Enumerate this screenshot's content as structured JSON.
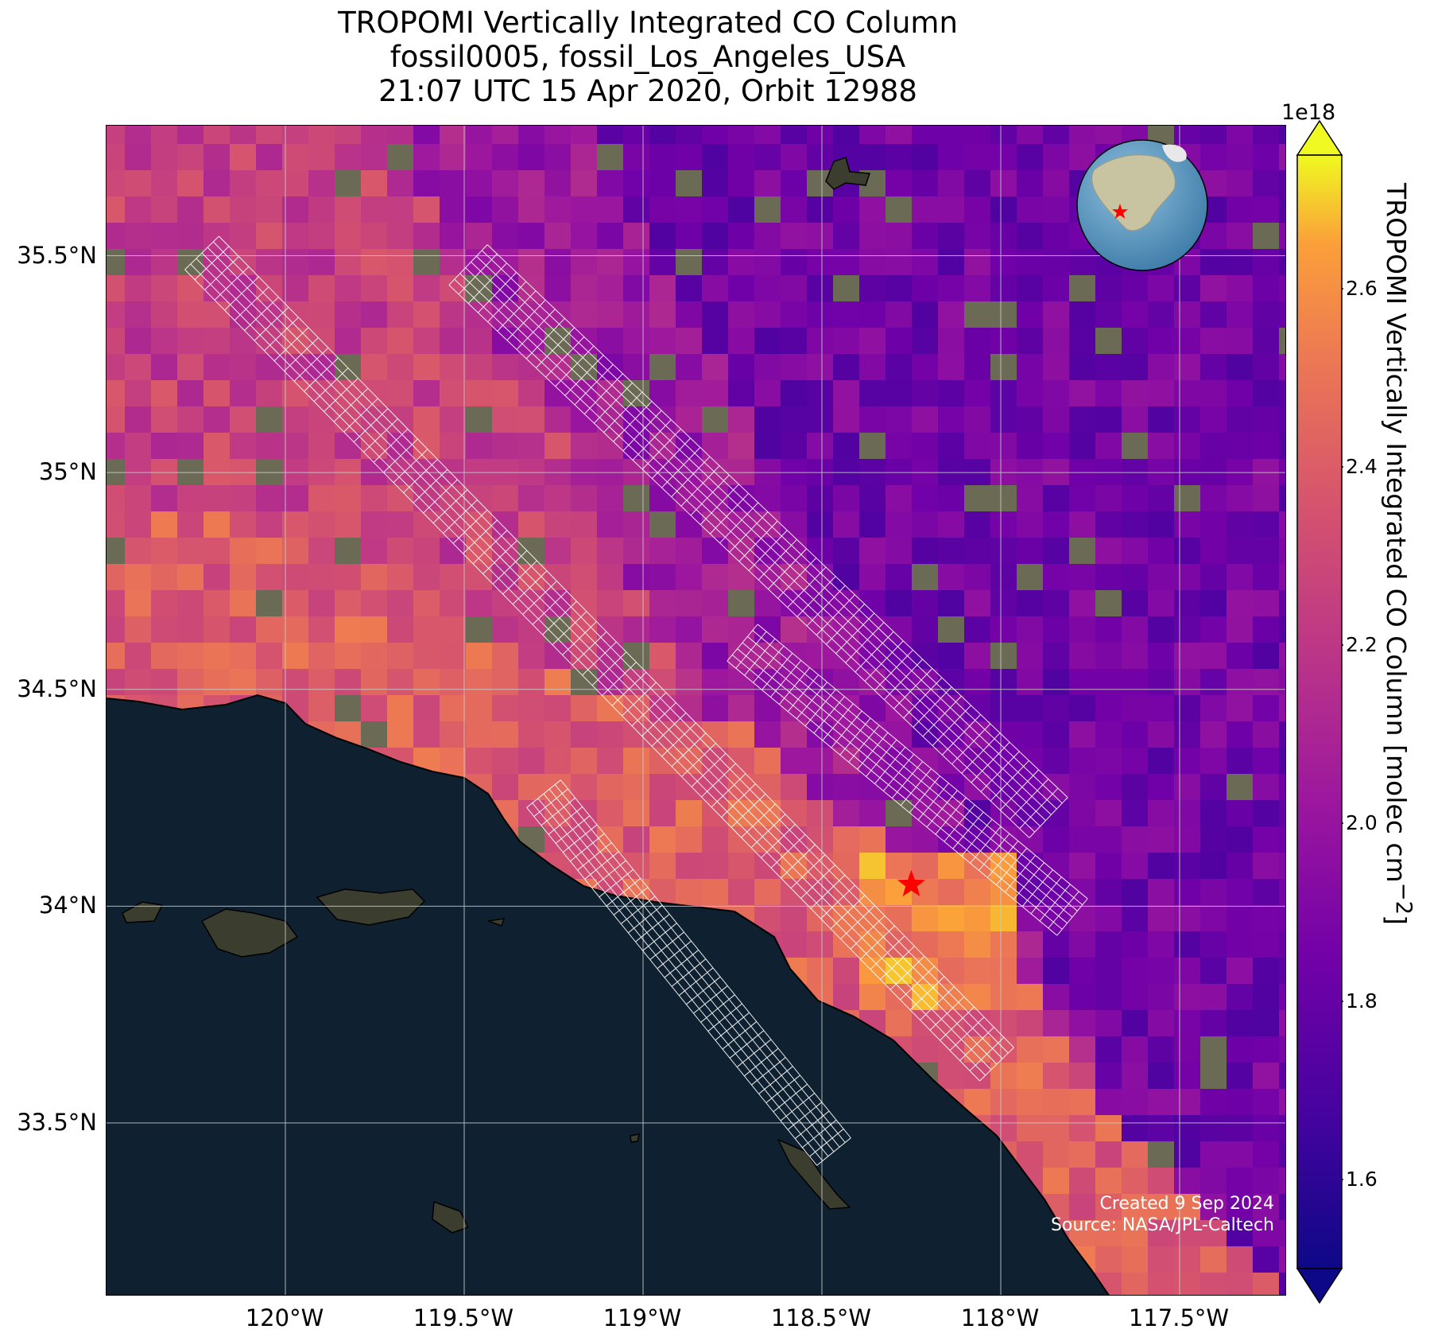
{
  "title": {
    "line1": "TROPOMI Vertically Integrated CO Column",
    "line2": "fossil0005, fossil_Los_Angeles_USA",
    "line3": "21:07 UTC 15 Apr 2020, Orbit 12988"
  },
  "map": {
    "lon_range": [
      -120.5,
      -117.2
    ],
    "lat_range": [
      33.1,
      35.8
    ],
    "lat_ticks": [
      {
        "value": 35.5,
        "label": "35.5°N"
      },
      {
        "value": 35.0,
        "label": "35°N"
      },
      {
        "value": 34.5,
        "label": "34.5°N"
      },
      {
        "value": 34.0,
        "label": "34°N"
      },
      {
        "value": 33.5,
        "label": "33.5°N"
      }
    ],
    "lon_ticks": [
      {
        "value": -120.0,
        "label": "120°W"
      },
      {
        "value": -119.5,
        "label": "119.5°W"
      },
      {
        "value": -119.0,
        "label": "119°W"
      },
      {
        "value": -118.5,
        "label": "118.5°W"
      },
      {
        "value": -118.0,
        "label": "118°W"
      },
      {
        "value": -117.5,
        "label": "117.5°W"
      }
    ],
    "gridlines": true,
    "target": {
      "name": "fossil_Los_Angeles_USA",
      "lon": -118.25,
      "lat": 34.05,
      "marker": "red-star"
    },
    "ocean_color": "#0f2130",
    "land_color": "#6b6a55",
    "inset_globe": {
      "placement": "top-right",
      "marker": "red-star"
    }
  },
  "colorbar": {
    "colormap": "plasma",
    "min": 1.5,
    "max": 2.75,
    "exponent": "1e18",
    "ticks": [
      "1.6",
      "1.8",
      "2.0",
      "2.2",
      "2.4",
      "2.6"
    ],
    "tick_values": [
      1.6,
      1.8,
      2.0,
      2.2,
      2.4,
      2.6
    ],
    "extend": "both",
    "label": "TROPOMI Vertically Integrated CO Column [molec cm",
    "label_sup": "−2",
    "label_end": "]"
  },
  "credits": {
    "line1": "Created 9 Sep 2024",
    "line2": "Source: NASA/JPL-Caltech"
  }
}
